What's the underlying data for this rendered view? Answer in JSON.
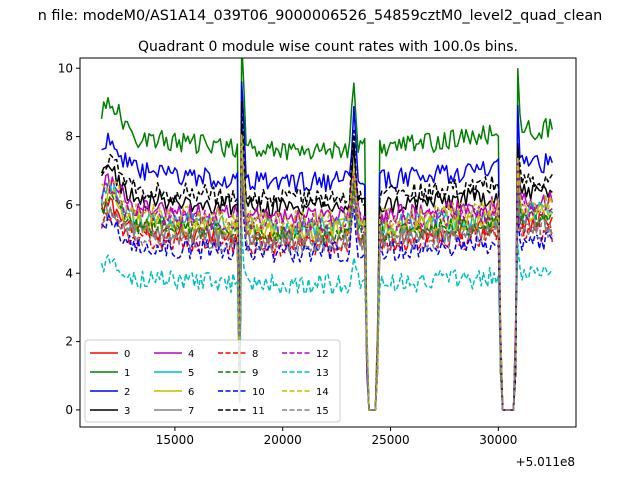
{
  "suptitle": "n file: modeM0/AS1A14_039T06_9000006526_54859cztM0_level2_quad_clean",
  "chart_data": {
    "type": "line",
    "title": "Quadrant 0 module wise count rates with 100.0s bins.",
    "xlabel": "",
    "ylabel": "",
    "offset_label": "+5.011e8",
    "xlim": [
      10600,
      33600
    ],
    "ylim": [
      -0.5,
      10.3
    ],
    "xticks": [
      15000,
      20000,
      25000,
      30000
    ],
    "xtick_labels": [
      "15000",
      "20000",
      "25000",
      "30000"
    ],
    "yticks": [
      0,
      2,
      4,
      6,
      8,
      10
    ],
    "ytick_labels": [
      "0",
      "2",
      "4",
      "6",
      "8",
      "10"
    ],
    "grid": false,
    "legend_position": "lower-left",
    "bin_seconds": 100,
    "x_range": [
      11600,
      32500
    ],
    "gaps": [
      {
        "start": 17980,
        "end": 18060,
        "dip_to": 0.2
      },
      {
        "start": 23900,
        "end": 24400,
        "dip_to": 0.0
      },
      {
        "start": 30100,
        "end": 30800,
        "dip_to": 0.0
      }
    ],
    "spikes": [
      {
        "x": 18100,
        "amp": 2.3
      },
      {
        "x": 23300,
        "amp": 1.6
      },
      {
        "x": 30850,
        "amp": 1.5
      }
    ],
    "series": [
      {
        "name": "0",
        "color": "#ff0000",
        "dash": "solid",
        "level": 5.4
      },
      {
        "name": "1",
        "color": "#008000",
        "dash": "solid",
        "level": 8.1
      },
      {
        "name": "2",
        "color": "#0000ff",
        "dash": "solid",
        "level": 7.1
      },
      {
        "name": "3",
        "color": "#000000",
        "dash": "solid",
        "level": 6.3
      },
      {
        "name": "4",
        "color": "#bf00bf",
        "dash": "solid",
        "level": 6.0
      },
      {
        "name": "5",
        "color": "#00bfbf",
        "dash": "solid",
        "level": 5.7
      },
      {
        "name": "6",
        "color": "#bfbf00",
        "dash": "solid",
        "level": 5.6
      },
      {
        "name": "7",
        "color": "#808080",
        "dash": "solid",
        "level": 5.3
      },
      {
        "name": "8",
        "color": "#ff0000",
        "dash": "dashed",
        "level": 5.1
      },
      {
        "name": "9",
        "color": "#008000",
        "dash": "dashed",
        "level": 5.5
      },
      {
        "name": "10",
        "color": "#0000ff",
        "dash": "dashed",
        "level": 4.9
      },
      {
        "name": "11",
        "color": "#000000",
        "dash": "dashed",
        "level": 6.6
      },
      {
        "name": "12",
        "color": "#bf00bf",
        "dash": "dashed",
        "level": 5.8
      },
      {
        "name": "13",
        "color": "#00bfbf",
        "dash": "dashed",
        "level": 3.9
      },
      {
        "name": "14",
        "color": "#bfbf00",
        "dash": "dashed",
        "level": 5.9
      },
      {
        "name": "15",
        "color": "#808080",
        "dash": "dashed",
        "level": 5.2
      }
    ]
  }
}
